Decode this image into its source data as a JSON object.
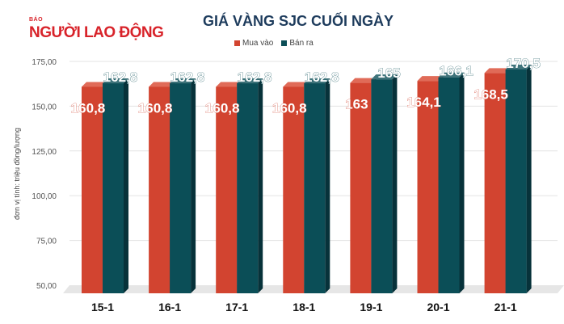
{
  "logo": {
    "small": "BÁO",
    "big": "NGƯỜI LAO ĐỘNG"
  },
  "chart_data": {
    "type": "bar",
    "title": "GIÁ VÀNG SJC CUỐI NGÀY",
    "ylabel": "đơn vị tính: triệu đồng/lượng",
    "xlabel": "",
    "categories": [
      "15-1",
      "16-1",
      "17-1",
      "18-1",
      "19-1",
      "20-1",
      "21-1"
    ],
    "series": [
      {
        "name": "Mua vào",
        "color": "#d24430",
        "values": [
          160.8,
          160.8,
          160.8,
          160.8,
          163,
          164.1,
          168.5
        ],
        "labels": [
          "160,8",
          "160,8",
          "160,8",
          "160,8",
          "163",
          "164,1",
          "168,5"
        ]
      },
      {
        "name": "Bán ra",
        "color": "#0b4e57",
        "values": [
          162.8,
          162.8,
          162.8,
          162.8,
          165,
          166.1,
          170.5
        ],
        "labels": [
          "162,8",
          "162,8",
          "162,8",
          "162,8",
          "165",
          "166,1",
          "170,5"
        ]
      }
    ],
    "ylim": [
      50,
      175
    ],
    "yticks": [
      "50,00",
      "75,00",
      "100,00",
      "125,00",
      "150,00",
      "175,00"
    ],
    "grid": true,
    "legend": "top-center",
    "style": "3d-column"
  }
}
